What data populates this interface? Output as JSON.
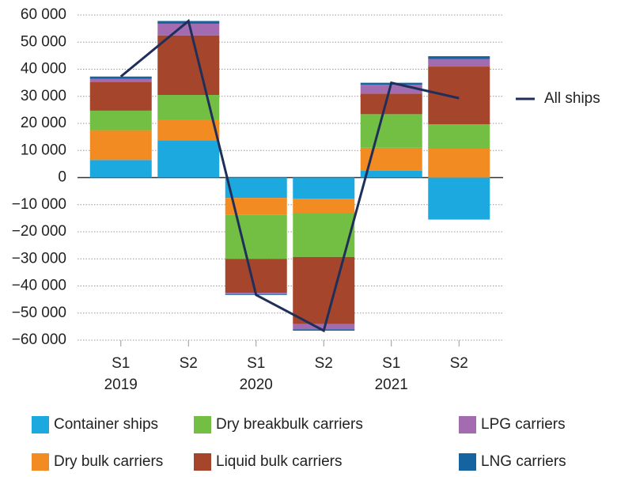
{
  "chart_data": {
    "type": "stacked_bar",
    "categories": [
      "S1",
      "S2",
      "S1",
      "S2",
      "S1",
      "S2"
    ],
    "years": [
      "2019",
      null,
      "2020",
      null,
      "2021",
      null
    ],
    "series": [
      {
        "name": "Container ships",
        "color": "#1ba9e0",
        "values": [
          6500,
          13800,
          -7500,
          -7800,
          2500,
          -15500
        ]
      },
      {
        "name": "Dry bulk carriers",
        "color": "#f28b22",
        "values": [
          11000,
          7500,
          -6300,
          -5200,
          8500,
          10800
        ]
      },
      {
        "name": "Dry breakbulk carriers",
        "color": "#72bf44",
        "values": [
          7200,
          9200,
          -16200,
          -16300,
          12400,
          8900
        ]
      },
      {
        "name": "Liquid bulk carriers",
        "color": "#a5452b",
        "values": [
          10600,
          22000,
          -12500,
          -24700,
          7600,
          21300
        ]
      },
      {
        "name": "LPG carriers",
        "color": "#a36cb0",
        "values": [
          1200,
          4300,
          -500,
          -2000,
          3300,
          2800
        ]
      },
      {
        "name": "LNG carriers",
        "color": "#15649f",
        "values": [
          800,
          1000,
          -300,
          -500,
          700,
          1000
        ]
      }
    ],
    "line_series": {
      "name": "All ships",
      "color": "#1f2f5a",
      "values": [
        37300,
        57800,
        -43300,
        -56500,
        35000,
        29300
      ]
    },
    "ylim": [
      -60000,
      60000
    ],
    "yticks": [
      {
        "value": 60000,
        "label": "60 000"
      },
      {
        "value": 50000,
        "label": "50 000"
      },
      {
        "value": 40000,
        "label": "40 000"
      },
      {
        "value": 30000,
        "label": "30 000"
      },
      {
        "value": 20000,
        "label": "20 000"
      },
      {
        "value": 10000,
        "label": "10 000"
      },
      0,
      {
        "value": -10000,
        "label": "−10 000"
      },
      {
        "value": -20000,
        "label": "−20 000"
      },
      {
        "value": -30000,
        "label": "−30 000"
      },
      {
        "value": -40000,
        "label": "−40 000"
      },
      {
        "value": -50000,
        "label": "−50 000"
      },
      {
        "value": -60000,
        "label": "−60 000"
      }
    ],
    "grid": true
  }
}
